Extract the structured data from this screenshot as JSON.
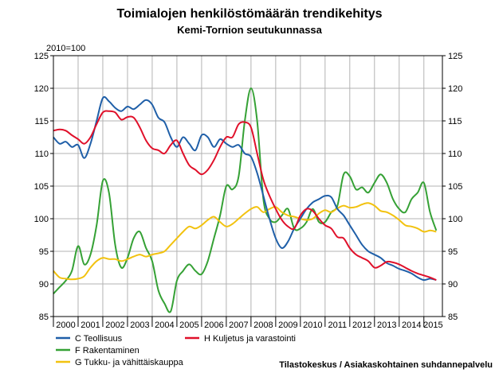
{
  "chart_data": {
    "type": "line",
    "title": "Toimialojen henkilöstömäärän trendikehitys",
    "subtitle": "Kemi-Tornion seutukunnassa",
    "ylabel": "2010=100",
    "ylim": [
      85,
      125
    ],
    "y_ticks": [
      85,
      90,
      95,
      100,
      105,
      110,
      115,
      120,
      125
    ],
    "xlim": [
      2000,
      2015.75
    ],
    "year_labels": [
      "2000",
      "2001",
      "2002",
      "2003",
      "2004",
      "2005",
      "2006",
      "2007",
      "2008",
      "2009",
      "2010",
      "2011",
      "2012",
      "2013",
      "2014",
      "2015"
    ],
    "grid": true,
    "legend_position": "bottom",
    "source": "Tilastokeskus / Asiakaskohtainen suhdannepalvelu",
    "series": [
      {
        "name": "C Teollisuus",
        "color": "#1f5fa8",
        "points": [
          [
            2000.0,
            112.5
          ],
          [
            2000.25,
            111.5
          ],
          [
            2000.5,
            111.8
          ],
          [
            2000.75,
            111.0
          ],
          [
            2001.0,
            111.3
          ],
          [
            2001.25,
            109.3
          ],
          [
            2001.5,
            111.5
          ],
          [
            2001.75,
            115.0
          ],
          [
            2002.0,
            118.5
          ],
          [
            2002.25,
            118.0
          ],
          [
            2002.5,
            117.0
          ],
          [
            2002.75,
            116.5
          ],
          [
            2003.0,
            117.2
          ],
          [
            2003.25,
            116.8
          ],
          [
            2003.5,
            117.5
          ],
          [
            2003.75,
            118.2
          ],
          [
            2004.0,
            117.5
          ],
          [
            2004.25,
            115.5
          ],
          [
            2004.5,
            114.8
          ],
          [
            2004.75,
            112.5
          ],
          [
            2005.0,
            111.0
          ],
          [
            2005.25,
            112.5
          ],
          [
            2005.5,
            111.5
          ],
          [
            2005.75,
            110.5
          ],
          [
            2006.0,
            112.8
          ],
          [
            2006.25,
            112.5
          ],
          [
            2006.5,
            111.0
          ],
          [
            2006.75,
            112.2
          ],
          [
            2007.0,
            111.5
          ],
          [
            2007.25,
            111.0
          ],
          [
            2007.5,
            111.3
          ],
          [
            2007.75,
            110.0
          ],
          [
            2008.0,
            109.5
          ],
          [
            2008.25,
            107.0
          ],
          [
            2008.5,
            103.5
          ],
          [
            2008.75,
            100.0
          ],
          [
            2009.0,
            97.0
          ],
          [
            2009.25,
            95.5
          ],
          [
            2009.5,
            96.5
          ],
          [
            2009.75,
            98.5
          ],
          [
            2010.0,
            100.0
          ],
          [
            2010.25,
            101.5
          ],
          [
            2010.5,
            102.5
          ],
          [
            2010.75,
            103.0
          ],
          [
            2011.0,
            103.5
          ],
          [
            2011.25,
            103.3
          ],
          [
            2011.5,
            101.5
          ],
          [
            2011.75,
            100.5
          ],
          [
            2012.0,
            99.0
          ],
          [
            2012.25,
            97.5
          ],
          [
            2012.5,
            96.0
          ],
          [
            2012.75,
            95.0
          ],
          [
            2013.0,
            94.5
          ],
          [
            2013.25,
            94.0
          ],
          [
            2013.5,
            93.2
          ],
          [
            2013.75,
            92.8
          ],
          [
            2014.0,
            92.3
          ],
          [
            2014.25,
            92.0
          ],
          [
            2014.5,
            91.6
          ],
          [
            2014.75,
            91.0
          ],
          [
            2015.0,
            90.6
          ],
          [
            2015.25,
            90.8
          ],
          [
            2015.5,
            90.6
          ]
        ]
      },
      {
        "name": "F Rakentaminen",
        "color": "#35a135",
        "points": [
          [
            2000.0,
            88.5
          ],
          [
            2000.25,
            89.5
          ],
          [
            2000.5,
            90.5
          ],
          [
            2000.75,
            92.0
          ],
          [
            2001.0,
            95.8
          ],
          [
            2001.25,
            93.0
          ],
          [
            2001.5,
            94.5
          ],
          [
            2001.75,
            99.0
          ],
          [
            2002.0,
            105.8
          ],
          [
            2002.25,
            104.0
          ],
          [
            2002.5,
            96.0
          ],
          [
            2002.75,
            92.5
          ],
          [
            2003.0,
            94.0
          ],
          [
            2003.25,
            97.0
          ],
          [
            2003.5,
            98.0
          ],
          [
            2003.75,
            95.5
          ],
          [
            2004.0,
            93.5
          ],
          [
            2004.25,
            89.0
          ],
          [
            2004.5,
            87.0
          ],
          [
            2004.75,
            85.8
          ],
          [
            2005.0,
            90.5
          ],
          [
            2005.25,
            92.0
          ],
          [
            2005.5,
            93.0
          ],
          [
            2005.75,
            92.0
          ],
          [
            2006.0,
            91.5
          ],
          [
            2006.25,
            93.5
          ],
          [
            2006.5,
            97.0
          ],
          [
            2006.75,
            100.5
          ],
          [
            2007.0,
            105.0
          ],
          [
            2007.25,
            104.5
          ],
          [
            2007.5,
            106.5
          ],
          [
            2007.75,
            115.0
          ],
          [
            2008.0,
            120.0
          ],
          [
            2008.25,
            115.0
          ],
          [
            2008.5,
            103.0
          ],
          [
            2008.75,
            100.0
          ],
          [
            2009.0,
            99.5
          ],
          [
            2009.25,
            100.5
          ],
          [
            2009.5,
            101.5
          ],
          [
            2009.75,
            98.5
          ],
          [
            2010.0,
            98.5
          ],
          [
            2010.25,
            99.5
          ],
          [
            2010.5,
            101.5
          ],
          [
            2010.75,
            99.5
          ],
          [
            2011.0,
            99.5
          ],
          [
            2011.25,
            101.0
          ],
          [
            2011.5,
            102.0
          ],
          [
            2011.75,
            106.8
          ],
          [
            2012.0,
            106.5
          ],
          [
            2012.25,
            104.5
          ],
          [
            2012.5,
            104.8
          ],
          [
            2012.75,
            104.0
          ],
          [
            2013.0,
            105.5
          ],
          [
            2013.25,
            106.8
          ],
          [
            2013.5,
            105.5
          ],
          [
            2013.75,
            103.0
          ],
          [
            2014.0,
            101.5
          ],
          [
            2014.25,
            101.0
          ],
          [
            2014.5,
            103.0
          ],
          [
            2014.75,
            104.0
          ],
          [
            2015.0,
            105.5
          ],
          [
            2015.25,
            101.0
          ],
          [
            2015.5,
            98.2
          ]
        ]
      },
      {
        "name": "G Tukku- ja vähittäiskauppa",
        "color": "#f2c20f",
        "points": [
          [
            2000.0,
            92.0
          ],
          [
            2000.25,
            91.0
          ],
          [
            2000.5,
            90.8
          ],
          [
            2000.75,
            90.7
          ],
          [
            2001.0,
            90.8
          ],
          [
            2001.25,
            91.2
          ],
          [
            2001.5,
            92.5
          ],
          [
            2001.75,
            93.5
          ],
          [
            2002.0,
            94.0
          ],
          [
            2002.25,
            93.8
          ],
          [
            2002.5,
            93.8
          ],
          [
            2002.75,
            93.5
          ],
          [
            2003.0,
            93.8
          ],
          [
            2003.25,
            94.2
          ],
          [
            2003.5,
            94.5
          ],
          [
            2003.75,
            94.2
          ],
          [
            2004.0,
            94.5
          ],
          [
            2004.25,
            94.7
          ],
          [
            2004.5,
            95.0
          ],
          [
            2004.75,
            96.0
          ],
          [
            2005.0,
            97.0
          ],
          [
            2005.25,
            98.0
          ],
          [
            2005.5,
            98.8
          ],
          [
            2005.75,
            98.5
          ],
          [
            2006.0,
            99.0
          ],
          [
            2006.25,
            99.8
          ],
          [
            2006.5,
            100.3
          ],
          [
            2006.75,
            99.5
          ],
          [
            2007.0,
            98.8
          ],
          [
            2007.25,
            99.2
          ],
          [
            2007.5,
            100.0
          ],
          [
            2007.75,
            100.8
          ],
          [
            2008.0,
            101.5
          ],
          [
            2008.25,
            101.8
          ],
          [
            2008.5,
            101.0
          ],
          [
            2008.75,
            101.5
          ],
          [
            2009.0,
            101.8
          ],
          [
            2009.25,
            101.0
          ],
          [
            2009.5,
            100.5
          ],
          [
            2009.75,
            100.3
          ],
          [
            2010.0,
            100.0
          ],
          [
            2010.25,
            99.8
          ],
          [
            2010.5,
            100.0
          ],
          [
            2010.75,
            100.8
          ],
          [
            2011.0,
            101.3
          ],
          [
            2011.25,
            101.0
          ],
          [
            2011.5,
            101.6
          ],
          [
            2011.75,
            102.0
          ],
          [
            2012.0,
            101.7
          ],
          [
            2012.25,
            101.8
          ],
          [
            2012.5,
            102.2
          ],
          [
            2012.75,
            102.4
          ],
          [
            2013.0,
            102.0
          ],
          [
            2013.25,
            101.2
          ],
          [
            2013.5,
            101.0
          ],
          [
            2013.75,
            100.5
          ],
          [
            2014.0,
            99.8
          ],
          [
            2014.25,
            99.0
          ],
          [
            2014.5,
            98.8
          ],
          [
            2014.75,
            98.5
          ],
          [
            2015.0,
            98.0
          ],
          [
            2015.25,
            98.2
          ],
          [
            2015.5,
            98.0
          ]
        ]
      },
      {
        "name": "H Kuljetus ja varastointi",
        "color": "#e0102a",
        "points": [
          [
            2000.0,
            113.5
          ],
          [
            2000.25,
            113.7
          ],
          [
            2000.5,
            113.5
          ],
          [
            2000.75,
            112.8
          ],
          [
            2001.0,
            112.2
          ],
          [
            2001.25,
            111.5
          ],
          [
            2001.5,
            112.5
          ],
          [
            2001.75,
            114.5
          ],
          [
            2002.0,
            116.3
          ],
          [
            2002.25,
            116.5
          ],
          [
            2002.5,
            116.3
          ],
          [
            2002.75,
            115.2
          ],
          [
            2003.0,
            115.6
          ],
          [
            2003.25,
            115.5
          ],
          [
            2003.5,
            114.0
          ],
          [
            2003.75,
            112.0
          ],
          [
            2004.0,
            110.8
          ],
          [
            2004.25,
            110.5
          ],
          [
            2004.5,
            110.0
          ],
          [
            2004.75,
            111.3
          ],
          [
            2005.0,
            112.0
          ],
          [
            2005.25,
            110.0
          ],
          [
            2005.5,
            108.2
          ],
          [
            2005.75,
            107.5
          ],
          [
            2006.0,
            106.8
          ],
          [
            2006.25,
            107.5
          ],
          [
            2006.5,
            109.0
          ],
          [
            2006.75,
            111.0
          ],
          [
            2007.0,
            112.5
          ],
          [
            2007.25,
            112.5
          ],
          [
            2007.5,
            114.5
          ],
          [
            2007.75,
            114.8
          ],
          [
            2008.0,
            114.0
          ],
          [
            2008.25,
            110.0
          ],
          [
            2008.5,
            106.0
          ],
          [
            2008.75,
            103.5
          ],
          [
            2009.0,
            101.5
          ],
          [
            2009.25,
            99.8
          ],
          [
            2009.5,
            98.8
          ],
          [
            2009.75,
            98.5
          ],
          [
            2010.0,
            100.5
          ],
          [
            2010.25,
            101.5
          ],
          [
            2010.5,
            101.2
          ],
          [
            2010.75,
            100.0
          ],
          [
            2011.0,
            99.0
          ],
          [
            2011.25,
            98.5
          ],
          [
            2011.5,
            97.2
          ],
          [
            2011.75,
            97.0
          ],
          [
            2012.0,
            95.5
          ],
          [
            2012.25,
            94.5
          ],
          [
            2012.5,
            94.0
          ],
          [
            2012.75,
            93.5
          ],
          [
            2013.0,
            92.5
          ],
          [
            2013.25,
            92.8
          ],
          [
            2013.5,
            93.4
          ],
          [
            2013.75,
            93.3
          ],
          [
            2014.0,
            93.0
          ],
          [
            2014.25,
            92.5
          ],
          [
            2014.5,
            92.0
          ],
          [
            2014.75,
            91.6
          ],
          [
            2015.0,
            91.3
          ],
          [
            2015.25,
            91.0
          ],
          [
            2015.5,
            90.6
          ]
        ]
      }
    ]
  }
}
